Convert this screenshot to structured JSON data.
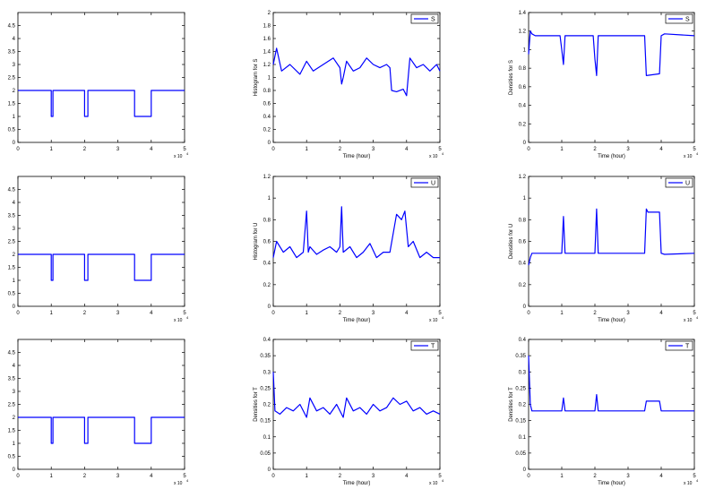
{
  "figure": {
    "panels": [
      {
        "id": "r1c1",
        "legend": "",
        "ylabel": "",
        "xlabel": "",
        "xticks": [
          "0",
          "1",
          "2",
          "3",
          "4",
          "5"
        ],
        "yticks": [
          "0",
          "0.5",
          "1",
          "1.5",
          "2",
          "2.5",
          "3",
          "3.5",
          "4",
          "4.5"
        ],
        "xexp": "x 10",
        "xexp_power": "4"
      },
      {
        "id": "r1c2",
        "legend": "S",
        "ylabel": "Histogram for S",
        "xlabel": "Time (hour)",
        "xticks": [
          "0",
          "1",
          "2",
          "3",
          "4",
          "5"
        ],
        "yticks": [
          "0",
          "0.2",
          "0.4",
          "0.6",
          "0.8",
          "1",
          "1.2",
          "1.4",
          "1.6",
          "1.8",
          "2"
        ],
        "xexp": "x 10",
        "xexp_power": "4"
      },
      {
        "id": "r1c3",
        "legend": "S",
        "ylabel": "Densities for S",
        "xlabel": "Time (hour)",
        "xticks": [
          "0",
          "1",
          "2",
          "3",
          "4",
          "5"
        ],
        "yticks": [
          "0",
          "0.2",
          "0.4",
          "0.6",
          "0.8",
          "1",
          "1.2",
          "1.4"
        ],
        "xexp": "x 10",
        "xexp_power": "4"
      },
      {
        "id": "r2c1",
        "legend": "",
        "ylabel": "",
        "xlabel": "",
        "xticks": [
          "0",
          "1",
          "2",
          "3",
          "4",
          "5"
        ],
        "yticks": [
          "0",
          "0.5",
          "1",
          "1.5",
          "2",
          "2.5",
          "3",
          "3.5",
          "4",
          "4.5"
        ],
        "xexp": "x 10",
        "xexp_power": "4"
      },
      {
        "id": "r2c2",
        "legend": "U",
        "ylabel": "Histogram for U",
        "xlabel": "Time (hour)",
        "xticks": [
          "0",
          "1",
          "2",
          "3",
          "4",
          "5"
        ],
        "yticks": [
          "0",
          "0.2",
          "0.4",
          "0.6",
          "0.8",
          "1",
          "1.2"
        ],
        "xexp": "x 10",
        "xexp_power": "4"
      },
      {
        "id": "r2c3",
        "legend": "U",
        "ylabel": "Densities for U",
        "xlabel": "Time (hour)",
        "xticks": [
          "0",
          "1",
          "2",
          "3",
          "4",
          "5"
        ],
        "yticks": [
          "0",
          "0.2",
          "0.4",
          "0.6",
          "0.8",
          "1",
          "1.2"
        ],
        "xexp": "x 10",
        "xexp_power": "4"
      },
      {
        "id": "r3c1",
        "legend": "",
        "ylabel": "",
        "xlabel": "",
        "xticks": [
          "0",
          "1",
          "2",
          "3",
          "4",
          "5"
        ],
        "yticks": [
          "0",
          "0.5",
          "1",
          "1.5",
          "2",
          "2.5",
          "3",
          "3.5",
          "4",
          "4.5"
        ],
        "xexp": "x 10",
        "xexp_power": "4"
      },
      {
        "id": "r3c2",
        "legend": "T",
        "ylabel": "Densities for T",
        "xlabel": "Time (hour)",
        "xticks": [
          "0",
          "1",
          "2",
          "3",
          "4",
          "5"
        ],
        "yticks": [
          "0",
          "0.05",
          "0.1",
          "0.15",
          "0.2",
          "0.25",
          "0.3",
          "0.35",
          "0.4"
        ],
        "xexp": "x 10",
        "xexp_power": "4"
      },
      {
        "id": "r3c3",
        "legend": "T",
        "ylabel": "Densities for T",
        "xlabel": "Time (hour)",
        "xticks": [
          "0",
          "1",
          "2",
          "3",
          "4",
          "5"
        ],
        "yticks": [
          "0",
          "0.05",
          "0.1",
          "0.15",
          "0.2",
          "0.25",
          "0.3",
          "0.35",
          "0.4"
        ],
        "xexp": "x 10",
        "xexp_power": "4"
      }
    ]
  },
  "chart_data": [
    {
      "type": "line",
      "panel": "r1c1",
      "xlim": [
        0,
        50000
      ],
      "ylim": [
        0,
        5
      ],
      "grid": false,
      "line_color": "#0000ff",
      "series": [
        {
          "name": "",
          "x": [
            0,
            10000,
            10000,
            10500,
            10500,
            20000,
            20000,
            21000,
            21000,
            35000,
            35000,
            40000,
            40000,
            50000
          ],
          "y": [
            2,
            2,
            1,
            1,
            2,
            2,
            1,
            1,
            2,
            2,
            1,
            1,
            2,
            2
          ]
        }
      ]
    },
    {
      "type": "line",
      "panel": "r1c2",
      "xlim": [
        0,
        50000
      ],
      "ylim": [
        0,
        2
      ],
      "grid": false,
      "legend_position": "top-right",
      "line_color": "#0000ff",
      "series": [
        {
          "name": "S",
          "x": [
            0,
            1000,
            2500,
            5000,
            8000,
            10000,
            12000,
            15000,
            18000,
            20000,
            20500,
            21000,
            22000,
            24000,
            26000,
            28000,
            30000,
            32000,
            34000,
            35000,
            35500,
            37000,
            39000,
            40000,
            41000,
            43000,
            45000,
            47000,
            49000,
            50000
          ],
          "y": [
            1.2,
            1.45,
            1.1,
            1.2,
            1.05,
            1.25,
            1.1,
            1.2,
            1.3,
            1.15,
            0.9,
            1.0,
            1.25,
            1.1,
            1.15,
            1.3,
            1.2,
            1.15,
            1.2,
            1.15,
            0.8,
            0.78,
            0.82,
            0.72,
            1.3,
            1.15,
            1.2,
            1.1,
            1.2,
            1.1
          ]
        }
      ]
    },
    {
      "type": "line",
      "panel": "r1c3",
      "xlim": [
        0,
        50000
      ],
      "ylim": [
        0,
        1.4
      ],
      "grid": false,
      "legend_position": "top-right",
      "line_color": "#0000ff",
      "series": [
        {
          "name": "S",
          "x": [
            0,
            500,
            1000,
            2000,
            9500,
            10000,
            10500,
            11000,
            19500,
            20000,
            20500,
            21000,
            35000,
            35500,
            39500,
            40000,
            41000,
            50000
          ],
          "y": [
            0.95,
            1.2,
            1.17,
            1.15,
            1.15,
            1.0,
            0.84,
            1.15,
            1.15,
            0.9,
            0.72,
            1.15,
            1.15,
            0.72,
            0.74,
            1.15,
            1.17,
            1.15
          ]
        }
      ]
    },
    {
      "type": "line",
      "panel": "r2c1",
      "xlim": [
        0,
        50000
      ],
      "ylim": [
        0,
        5
      ],
      "grid": false,
      "line_color": "#0000ff",
      "series": [
        {
          "name": "",
          "x": [
            0,
            10000,
            10000,
            10500,
            10500,
            20000,
            20000,
            21000,
            21000,
            35000,
            35000,
            40000,
            40000,
            50000
          ],
          "y": [
            2,
            2,
            1,
            1,
            2,
            2,
            1,
            1,
            2,
            2,
            1,
            1,
            2,
            2
          ]
        }
      ]
    },
    {
      "type": "line",
      "panel": "r2c2",
      "xlim": [
        0,
        50000
      ],
      "ylim": [
        0,
        1.2
      ],
      "grid": false,
      "legend_position": "top-right",
      "line_color": "#0000ff",
      "series": [
        {
          "name": "U",
          "x": [
            0,
            1000,
            3000,
            5000,
            7000,
            9000,
            10000,
            10500,
            11000,
            13000,
            15000,
            17000,
            19000,
            20000,
            20500,
            21000,
            23000,
            25000,
            27000,
            29000,
            31000,
            33000,
            35000,
            37000,
            38500,
            39500,
            40500,
            42000,
            44000,
            46000,
            48000,
            50000
          ],
          "y": [
            0.45,
            0.6,
            0.5,
            0.55,
            0.45,
            0.5,
            0.88,
            0.5,
            0.55,
            0.48,
            0.52,
            0.55,
            0.5,
            0.55,
            0.92,
            0.5,
            0.55,
            0.45,
            0.5,
            0.58,
            0.45,
            0.5,
            0.5,
            0.85,
            0.8,
            0.88,
            0.55,
            0.6,
            0.45,
            0.5,
            0.45,
            0.45
          ]
        }
      ]
    },
    {
      "type": "line",
      "panel": "r2c3",
      "xlim": [
        0,
        50000
      ],
      "ylim": [
        0,
        1.2
      ],
      "grid": false,
      "legend_position": "top-right",
      "line_color": "#0000ff",
      "series": [
        {
          "name": "U",
          "x": [
            0,
            500,
            1000,
            2000,
            10000,
            10500,
            11000,
            20000,
            20500,
            21000,
            35000,
            35500,
            36000,
            39500,
            40000,
            41000,
            50000
          ],
          "y": [
            0.38,
            0.45,
            0.49,
            0.49,
            0.49,
            0.83,
            0.49,
            0.49,
            0.9,
            0.49,
            0.49,
            0.9,
            0.87,
            0.87,
            0.49,
            0.48,
            0.49
          ]
        }
      ]
    },
    {
      "type": "line",
      "panel": "r3c1",
      "xlim": [
        0,
        50000
      ],
      "ylim": [
        0,
        5
      ],
      "grid": false,
      "line_color": "#0000ff",
      "series": [
        {
          "name": "",
          "x": [
            0,
            10000,
            10000,
            10500,
            10500,
            20000,
            20000,
            21000,
            21000,
            35000,
            35000,
            40000,
            40000,
            50000
          ],
          "y": [
            2,
            2,
            1,
            1,
            2,
            2,
            1,
            1,
            2,
            2,
            1,
            1,
            2,
            2
          ]
        }
      ]
    },
    {
      "type": "line",
      "panel": "r3c2",
      "xlim": [
        0,
        50000
      ],
      "ylim": [
        0,
        0.4
      ],
      "grid": false,
      "legend_position": "top-right",
      "line_color": "#0000ff",
      "series": [
        {
          "name": "T",
          "x": [
            0,
            500,
            2000,
            4000,
            6000,
            8000,
            10000,
            11000,
            13000,
            15000,
            17000,
            19000,
            21000,
            22000,
            24000,
            26000,
            28000,
            30000,
            32000,
            34000,
            36000,
            38000,
            40000,
            42000,
            44000,
            46000,
            48000,
            50000
          ],
          "y": [
            0.3,
            0.18,
            0.17,
            0.19,
            0.18,
            0.2,
            0.16,
            0.22,
            0.18,
            0.19,
            0.17,
            0.2,
            0.16,
            0.22,
            0.18,
            0.19,
            0.17,
            0.2,
            0.18,
            0.19,
            0.22,
            0.2,
            0.21,
            0.18,
            0.19,
            0.17,
            0.18,
            0.17
          ]
        }
      ]
    },
    {
      "type": "line",
      "panel": "r3c3",
      "xlim": [
        0,
        50000
      ],
      "ylim": [
        0,
        0.4
      ],
      "grid": false,
      "legend_position": "top-right",
      "line_color": "#0000ff",
      "series": [
        {
          "name": "T",
          "x": [
            0,
            500,
            1000,
            2000,
            10000,
            10500,
            11000,
            20000,
            20500,
            21000,
            35000,
            35500,
            39500,
            40000,
            41000,
            50000
          ],
          "y": [
            0.35,
            0.2,
            0.18,
            0.18,
            0.18,
            0.22,
            0.18,
            0.18,
            0.23,
            0.18,
            0.18,
            0.21,
            0.21,
            0.18,
            0.18,
            0.18
          ]
        }
      ]
    }
  ]
}
